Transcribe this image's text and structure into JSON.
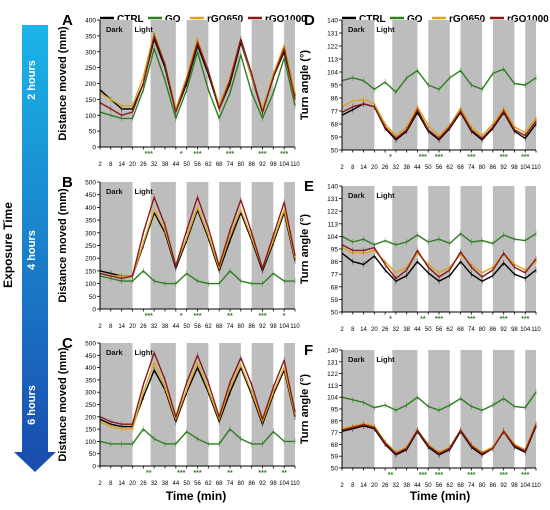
{
  "figure": {
    "exposure_label": "Exposure Time",
    "time_labels": [
      "2 hours",
      "4 hours",
      "6 hours"
    ],
    "xlabel": "Time (min)",
    "legend": [
      {
        "name": "CTRL",
        "color": "#000000"
      },
      {
        "name": "GO",
        "color": "#2e7d1e"
      },
      {
        "name": "rGO650",
        "color": "#d9a520"
      },
      {
        "name": "rGO1000",
        "color": "#8b1a1a"
      }
    ],
    "dark_label": "Dark",
    "light_label": "Light",
    "colors": {
      "dark_band": "#bdbdbd",
      "arrow_top": "#1ab5e8",
      "arrow_bottom": "#1a4fb0",
      "stars_green": "#2e7d1e",
      "stars_orange": "#d9a520",
      "stars_red": "#c23030"
    }
  },
  "chart_data": [
    {
      "id": "A",
      "type": "line",
      "panel_label": "A",
      "exposure": "2 hours",
      "ylabel": "Distance moved (mm)",
      "ylim": [
        0,
        400
      ],
      "yticks": [
        0,
        50,
        100,
        150,
        200,
        250,
        300,
        350,
        400
      ],
      "x": [
        2,
        8,
        14,
        20,
        26,
        32,
        38,
        44,
        50,
        56,
        62,
        68,
        74,
        80,
        86,
        92,
        98,
        104,
        110
      ],
      "dark_intervals": [
        [
          2,
          20
        ],
        [
          30,
          44
        ],
        [
          50,
          62
        ],
        [
          68,
          80
        ],
        [
          86,
          98
        ],
        [
          104,
          110
        ]
      ],
      "series": [
        {
          "name": "CTRL",
          "values": [
            180,
            150,
            120,
            120,
            200,
            340,
            250,
            110,
            200,
            320,
            230,
            120,
            200,
            330,
            220,
            110,
            220,
            300,
            160
          ]
        },
        {
          "name": "GO",
          "values": [
            110,
            100,
            90,
            90,
            180,
            310,
            210,
            90,
            180,
            300,
            180,
            90,
            170,
            290,
            170,
            90,
            170,
            280,
            130
          ]
        },
        {
          "name": "rGO650",
          "values": [
            170,
            150,
            130,
            130,
            220,
            360,
            260,
            120,
            220,
            340,
            240,
            130,
            220,
            340,
            220,
            120,
            230,
            320,
            170
          ]
        },
        {
          "name": "rGO1000",
          "values": [
            140,
            120,
            100,
            110,
            200,
            350,
            260,
            110,
            210,
            330,
            240,
            120,
            210,
            340,
            230,
            110,
            220,
            310,
            150
          ]
        }
      ],
      "significance": [
        "***",
        "*",
        "***",
        "***",
        "***",
        "***"
      ]
    },
    {
      "id": "B",
      "type": "line",
      "panel_label": "B",
      "exposure": "4 hours",
      "ylabel": "Distance moved (mm)",
      "ylim": [
        0,
        500
      ],
      "yticks": [
        0,
        50,
        100,
        150,
        200,
        250,
        300,
        350,
        400,
        450,
        500
      ],
      "x": [
        2,
        8,
        14,
        20,
        26,
        32,
        38,
        44,
        50,
        56,
        62,
        68,
        74,
        80,
        86,
        92,
        98,
        104,
        110
      ],
      "dark_intervals": [
        [
          2,
          20
        ],
        [
          30,
          44
        ],
        [
          50,
          62
        ],
        [
          68,
          80
        ],
        [
          86,
          98
        ],
        [
          104,
          110
        ]
      ],
      "series": [
        {
          "name": "CTRL",
          "values": [
            150,
            140,
            130,
            130,
            250,
            380,
            300,
            160,
            270,
            390,
            280,
            150,
            270,
            380,
            270,
            150,
            260,
            380,
            190
          ]
        },
        {
          "name": "GO",
          "values": [
            130,
            120,
            110,
            110,
            150,
            110,
            100,
            100,
            140,
            110,
            100,
            100,
            150,
            110,
            100,
            100,
            140,
            110,
            110
          ]
        },
        {
          "name": "rGO650",
          "values": [
            140,
            130,
            130,
            130,
            260,
            390,
            310,
            170,
            280,
            400,
            290,
            160,
            290,
            390,
            280,
            160,
            270,
            390,
            200
          ]
        },
        {
          "name": "rGO1000",
          "values": [
            140,
            130,
            120,
            130,
            300,
            440,
            330,
            170,
            310,
            440,
            320,
            170,
            310,
            430,
            300,
            160,
            290,
            420,
            210
          ]
        }
      ],
      "significance": [
        "***",
        "*",
        "***",
        "**",
        "***",
        "*"
      ]
    },
    {
      "id": "C",
      "type": "line",
      "panel_label": "C",
      "exposure": "6 hours",
      "ylabel": "Distance moved (mm)",
      "ylim": [
        0,
        500
      ],
      "yticks": [
        0,
        50,
        100,
        150,
        200,
        250,
        300,
        350,
        400,
        450,
        500
      ],
      "x": [
        2,
        8,
        14,
        20,
        26,
        32,
        38,
        44,
        50,
        56,
        62,
        68,
        74,
        80,
        86,
        92,
        98,
        104,
        110
      ],
      "dark_intervals": [
        [
          2,
          20
        ],
        [
          30,
          44
        ],
        [
          50,
          62
        ],
        [
          68,
          80
        ],
        [
          86,
          98
        ],
        [
          104,
          110
        ]
      ],
      "series": [
        {
          "name": "CTRL",
          "values": [
            190,
            170,
            160,
            160,
            280,
            390,
            310,
            180,
            300,
            400,
            300,
            180,
            300,
            400,
            290,
            170,
            290,
            390,
            200
          ]
        },
        {
          "name": "GO",
          "values": [
            100,
            90,
            90,
            90,
            150,
            110,
            90,
            90,
            140,
            110,
            90,
            90,
            150,
            110,
            90,
            90,
            140,
            100,
            100
          ]
        },
        {
          "name": "rGO650",
          "values": [
            180,
            160,
            150,
            150,
            300,
            420,
            320,
            190,
            310,
            420,
            310,
            190,
            320,
            410,
            300,
            180,
            300,
            400,
            210
          ]
        },
        {
          "name": "rGO1000",
          "values": [
            200,
            180,
            170,
            170,
            330,
            460,
            350,
            200,
            340,
            450,
            340,
            200,
            340,
            440,
            330,
            190,
            320,
            430,
            220
          ]
        }
      ],
      "significance": [
        "**",
        "***",
        "***",
        "**",
        "***",
        "**"
      ]
    },
    {
      "id": "D",
      "type": "line",
      "panel_label": "D",
      "exposure": "2 hours",
      "ylabel": "Turn angle (°)",
      "ylim": [
        50,
        140
      ],
      "yticks": [
        50,
        59,
        68,
        77,
        86,
        95,
        104,
        113,
        122,
        131,
        140
      ],
      "x": [
        2,
        8,
        14,
        20,
        26,
        32,
        38,
        44,
        50,
        56,
        62,
        68,
        74,
        80,
        86,
        92,
        98,
        104,
        110
      ],
      "dark_intervals": [
        [
          2,
          20
        ],
        [
          30,
          44
        ],
        [
          50,
          62
        ],
        [
          68,
          80
        ],
        [
          86,
          98
        ],
        [
          104,
          110
        ]
      ],
      "series": [
        {
          "name": "CTRL",
          "values": [
            74,
            78,
            82,
            80,
            65,
            57,
            63,
            76,
            63,
            57,
            65,
            76,
            63,
            57,
            65,
            76,
            63,
            58,
            68
          ]
        },
        {
          "name": "GO",
          "values": [
            98,
            100,
            98,
            92,
            97,
            90,
            100,
            105,
            95,
            92,
            100,
            105,
            95,
            92,
            103,
            106,
            96,
            95,
            100
          ]
        },
        {
          "name": "rGO650",
          "values": [
            80,
            84,
            85,
            82,
            68,
            60,
            66,
            80,
            67,
            60,
            67,
            79,
            66,
            60,
            68,
            79,
            66,
            62,
            72
          ]
        },
        {
          "name": "rGO1000",
          "values": [
            76,
            80,
            82,
            80,
            66,
            58,
            64,
            78,
            64,
            58,
            66,
            77,
            64,
            58,
            66,
            77,
            64,
            60,
            70
          ]
        }
      ],
      "significance": [
        "*",
        "***",
        "***",
        "***",
        "***",
        "***"
      ]
    },
    {
      "id": "E",
      "type": "line",
      "panel_label": "E",
      "exposure": "4 hours",
      "ylabel": "Turn angle (°)",
      "ylim": [
        50,
        140
      ],
      "yticks": [
        50,
        59,
        68,
        77,
        86,
        95,
        104,
        113,
        122,
        131,
        140
      ],
      "x": [
        2,
        8,
        14,
        20,
        26,
        32,
        38,
        44,
        50,
        56,
        62,
        68,
        74,
        80,
        86,
        92,
        98,
        104,
        110
      ],
      "dark_intervals": [
        [
          2,
          20
        ],
        [
          30,
          44
        ],
        [
          50,
          62
        ],
        [
          68,
          80
        ],
        [
          86,
          98
        ],
        [
          104,
          110
        ]
      ],
      "series": [
        {
          "name": "CTRL",
          "values": [
            92,
            86,
            84,
            90,
            80,
            72,
            76,
            86,
            78,
            72,
            76,
            86,
            77,
            72,
            76,
            85,
            77,
            74,
            80
          ]
        },
        {
          "name": "GO",
          "values": [
            104,
            100,
            102,
            98,
            101,
            98,
            100,
            105,
            100,
            102,
            99,
            106,
            100,
            101,
            99,
            105,
            102,
            101,
            106
          ]
        },
        {
          "name": "rGO650",
          "values": [
            96,
            92,
            92,
            94,
            86,
            78,
            82,
            92,
            84,
            78,
            82,
            91,
            84,
            78,
            82,
            92,
            84,
            80,
            86
          ]
        },
        {
          "name": "rGO1000",
          "values": [
            98,
            94,
            94,
            96,
            84,
            74,
            80,
            94,
            82,
            75,
            80,
            93,
            82,
            75,
            80,
            92,
            82,
            78,
            88
          ]
        }
      ],
      "significance": [
        "*",
        "**",
        "***",
        "***",
        "***",
        "***"
      ]
    },
    {
      "id": "F",
      "type": "line",
      "panel_label": "F",
      "exposure": "6 hours",
      "ylabel": "Turn angle (°)",
      "ylim": [
        50,
        140
      ],
      "yticks": [
        50,
        59,
        68,
        77,
        86,
        95,
        104,
        113,
        122,
        131,
        140
      ],
      "x": [
        2,
        8,
        14,
        20,
        26,
        32,
        38,
        44,
        50,
        56,
        62,
        68,
        74,
        80,
        86,
        92,
        98,
        104,
        110
      ],
      "dark_intervals": [
        [
          2,
          20
        ],
        [
          30,
          44
        ],
        [
          50,
          62
        ],
        [
          68,
          80
        ],
        [
          86,
          98
        ],
        [
          104,
          110
        ]
      ],
      "series": [
        {
          "name": "CTRL",
          "values": [
            78,
            80,
            82,
            80,
            68,
            60,
            64,
            78,
            66,
            60,
            64,
            78,
            66,
            60,
            65,
            78,
            66,
            62,
            82
          ]
        },
        {
          "name": "GO",
          "values": [
            104,
            102,
            100,
            96,
            98,
            94,
            98,
            104,
            97,
            94,
            98,
            103,
            97,
            94,
            98,
            103,
            97,
            96,
            108
          ]
        },
        {
          "name": "rGO650",
          "values": [
            80,
            82,
            84,
            82,
            70,
            62,
            66,
            79,
            68,
            62,
            66,
            79,
            68,
            62,
            66,
            79,
            68,
            64,
            84
          ]
        },
        {
          "name": "rGO1000",
          "values": [
            79,
            81,
            83,
            81,
            69,
            61,
            65,
            79,
            67,
            61,
            65,
            79,
            67,
            61,
            65,
            78,
            67,
            63,
            83
          ]
        }
      ],
      "significance": [
        "**",
        "***",
        "***",
        "***",
        "***",
        "***"
      ]
    }
  ]
}
